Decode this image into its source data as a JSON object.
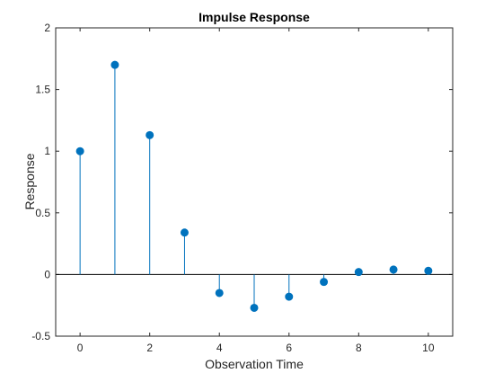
{
  "chart_data": {
    "type": "stem",
    "title": "Impulse Response",
    "xlabel": "Observation Time",
    "ylabel": "Response",
    "xlim": [
      -0.7,
      10.7
    ],
    "ylim": [
      -0.5,
      2
    ],
    "xticks": [
      0,
      2,
      4,
      6,
      8,
      10
    ],
    "yticks": [
      -0.5,
      0,
      0.5,
      1,
      1.5,
      2
    ],
    "xtick_labels": [
      "0",
      "2",
      "4",
      "6",
      "8",
      "10"
    ],
    "ytick_labels": [
      "-0.5",
      "0",
      "0.5",
      "1",
      "1.5",
      "2"
    ],
    "baseline": 0,
    "grid": false,
    "series": [
      {
        "color": "#0072BD",
        "x": [
          0,
          1,
          2,
          3,
          4,
          5,
          6,
          7,
          8,
          9,
          10
        ],
        "y": [
          1.0,
          1.7,
          1.13,
          0.34,
          -0.15,
          -0.27,
          -0.18,
          -0.06,
          0.02,
          0.04,
          0.03
        ]
      }
    ]
  }
}
